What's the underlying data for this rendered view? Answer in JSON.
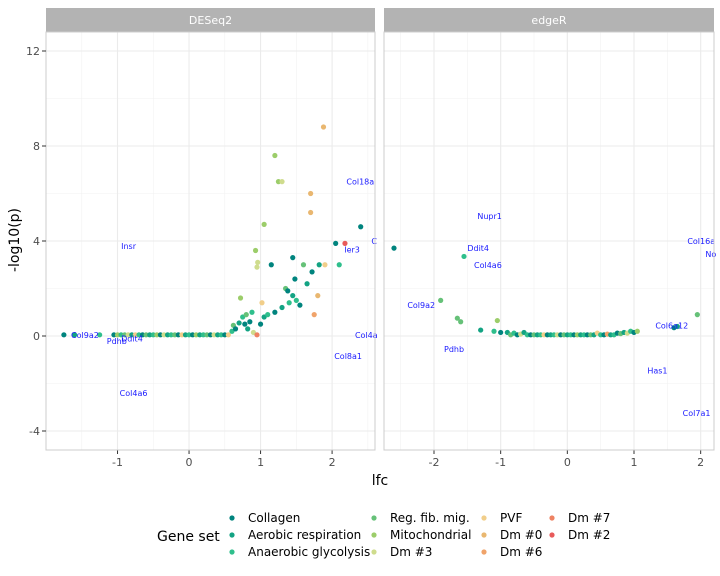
{
  "chart_data": {
    "type": "scatter",
    "xlabel": "lfc",
    "ylabel": "-log10(p)",
    "ylim": [
      -4.8,
      12.8
    ],
    "yticks": [
      -4,
      0,
      4,
      8,
      12
    ],
    "legend": {
      "title": "Gene set",
      "placement": "bottom",
      "entries": [
        {
          "name": "Collagen",
          "color": "#00847e"
        },
        {
          "name": "Aerobic respiration",
          "color": "#13a383"
        },
        {
          "name": "Anaerobic glycolysis",
          "color": "#2fbf8c"
        },
        {
          "name": "Reg. fib. mig.",
          "color": "#66c178"
        },
        {
          "name": "Mitochondrial",
          "color": "#9ccd6a"
        },
        {
          "name": "Dm #3",
          "color": "#cfdc8d"
        },
        {
          "name": "PVF",
          "color": "#f1ce8a"
        },
        {
          "name": "Dm #0",
          "color": "#e9b770"
        },
        {
          "name": "Dm #6",
          "color": "#f0a36a"
        },
        {
          "name": "Dm #7",
          "color": "#ee8262"
        },
        {
          "name": "Dm #2",
          "color": "#e85a5a"
        }
      ]
    },
    "panels": [
      {
        "title": "DESeq2",
        "xlim": [
          -2.0,
          2.6
        ],
        "xticks": [
          -1,
          0,
          1,
          2
        ],
        "points": [
          {
            "x": -1.75,
            "y": 0.05,
            "g": 0
          },
          {
            "x": -1.6,
            "y": 0.05,
            "g": 1
          },
          {
            "x": -1.25,
            "y": 0.05,
            "g": 2
          },
          {
            "x": -1.05,
            "y": 0.05,
            "g": 0
          },
          {
            "x": -1.0,
            "y": 0.05,
            "g": 4
          },
          {
            "x": -0.95,
            "y": 0.05,
            "g": 2
          },
          {
            "x": -0.9,
            "y": 0.05,
            "g": 3
          },
          {
            "x": -0.85,
            "y": 0.05,
            "g": 5
          },
          {
            "x": -0.8,
            "y": 0.05,
            "g": 1
          },
          {
            "x": -0.75,
            "y": 0.05,
            "g": 6
          },
          {
            "x": -0.7,
            "y": 0.05,
            "g": 2
          },
          {
            "x": -0.65,
            "y": 0.05,
            "g": 0
          },
          {
            "x": -0.6,
            "y": 0.05,
            "g": 3
          },
          {
            "x": -0.55,
            "y": 0.05,
            "g": 1
          },
          {
            "x": -0.5,
            "y": 0.05,
            "g": 2
          },
          {
            "x": -0.45,
            "y": 0.05,
            "g": 4
          },
          {
            "x": -0.4,
            "y": 0.05,
            "g": 0
          },
          {
            "x": -0.35,
            "y": 0.05,
            "g": 5
          },
          {
            "x": -0.3,
            "y": 0.05,
            "g": 1
          },
          {
            "x": -0.25,
            "y": 0.05,
            "g": 2
          },
          {
            "x": -0.2,
            "y": 0.05,
            "g": 3
          },
          {
            "x": -0.15,
            "y": 0.05,
            "g": 0
          },
          {
            "x": -0.1,
            "y": 0.05,
            "g": 6
          },
          {
            "x": -0.05,
            "y": 0.05,
            "g": 1
          },
          {
            "x": 0.0,
            "y": 0.05,
            "g": 2
          },
          {
            "x": 0.05,
            "y": 0.05,
            "g": 0
          },
          {
            "x": 0.1,
            "y": 0.05,
            "g": 4
          },
          {
            "x": 0.15,
            "y": 0.05,
            "g": 1
          },
          {
            "x": 0.2,
            "y": 0.05,
            "g": 2
          },
          {
            "x": 0.25,
            "y": 0.05,
            "g": 3
          },
          {
            "x": 0.3,
            "y": 0.05,
            "g": 0
          },
          {
            "x": 0.35,
            "y": 0.05,
            "g": 5
          },
          {
            "x": 0.4,
            "y": 0.05,
            "g": 1
          },
          {
            "x": 0.45,
            "y": 0.05,
            "g": 2
          },
          {
            "x": 0.5,
            "y": 0.05,
            "g": 0
          },
          {
            "x": 0.55,
            "y": 0.05,
            "g": 6
          },
          {
            "x": 0.6,
            "y": 0.2,
            "g": 2
          },
          {
            "x": 0.62,
            "y": 0.45,
            "g": 3
          },
          {
            "x": 0.65,
            "y": 0.3,
            "g": 0
          },
          {
            "x": 0.7,
            "y": 0.55,
            "g": 1
          },
          {
            "x": 0.72,
            "y": 1.6,
            "g": 4
          },
          {
            "x": 0.75,
            "y": 0.8,
            "g": 2
          },
          {
            "x": 0.78,
            "y": 0.5,
            "g": 0
          },
          {
            "x": 0.8,
            "y": 0.9,
            "g": 3
          },
          {
            "x": 0.82,
            "y": 0.3,
            "g": 1
          },
          {
            "x": 0.85,
            "y": 0.6,
            "g": 0
          },
          {
            "x": 0.88,
            "y": 1.0,
            "g": 2
          },
          {
            "x": 0.9,
            "y": 0.15,
            "g": 5
          },
          {
            "x": 0.93,
            "y": 3.6,
            "g": 4
          },
          {
            "x": 0.95,
            "y": 2.9,
            "g": 5
          },
          {
            "x": 0.96,
            "y": 3.1,
            "g": 5
          },
          {
            "x": 0.95,
            "y": 0.05,
            "g": 9
          },
          {
            "x": 1.0,
            "y": 0.5,
            "g": 0
          },
          {
            "x": 1.02,
            "y": 1.4,
            "g": 6
          },
          {
            "x": 1.05,
            "y": 4.7,
            "g": 4
          },
          {
            "x": 1.05,
            "y": 0.8,
            "g": 1
          },
          {
            "x": 1.1,
            "y": 0.9,
            "g": 2
          },
          {
            "x": 1.15,
            "y": 3.0,
            "g": 0
          },
          {
            "x": 1.2,
            "y": 7.6,
            "g": 4
          },
          {
            "x": 1.2,
            "y": 1.0,
            "g": 0
          },
          {
            "x": 1.25,
            "y": 6.5,
            "g": 4
          },
          {
            "x": 1.3,
            "y": 6.5,
            "g": 5
          },
          {
            "x": 1.3,
            "y": 1.2,
            "g": 1
          },
          {
            "x": 1.35,
            "y": 2.0,
            "g": 3
          },
          {
            "x": 1.38,
            "y": 1.9,
            "g": 0
          },
          {
            "x": 1.4,
            "y": 1.4,
            "g": 2
          },
          {
            "x": 1.45,
            "y": 3.3,
            "g": 0
          },
          {
            "x": 1.45,
            "y": 1.7,
            "g": 1
          },
          {
            "x": 1.48,
            "y": 2.4,
            "g": 0
          },
          {
            "x": 1.5,
            "y": 1.5,
            "g": 2
          },
          {
            "x": 1.55,
            "y": 1.3,
            "g": 0
          },
          {
            "x": 1.6,
            "y": 3.0,
            "g": 3
          },
          {
            "x": 1.65,
            "y": 2.2,
            "g": 1
          },
          {
            "x": 1.7,
            "y": 6.0,
            "g": 7
          },
          {
            "x": 1.7,
            "y": 5.2,
            "g": 7
          },
          {
            "x": 1.72,
            "y": 2.7,
            "g": 0
          },
          {
            "x": 1.75,
            "y": 0.9,
            "g": 8
          },
          {
            "x": 1.8,
            "y": 1.7,
            "g": 7
          },
          {
            "x": 1.82,
            "y": 3.0,
            "g": 1
          },
          {
            "x": 1.88,
            "y": 8.8,
            "g": 7
          },
          {
            "x": 1.9,
            "y": 3.0,
            "g": 6
          },
          {
            "x": 2.05,
            "y": 3.9,
            "g": 0
          },
          {
            "x": 2.1,
            "y": 3.0,
            "g": 2
          },
          {
            "x": 2.18,
            "y": 3.9,
            "g": 10
          },
          {
            "x": 2.4,
            "y": 4.6,
            "g": 0
          }
        ],
        "annotations": [
          {
            "text": "Col9a2",
            "x": -1.65,
            "y": 0.05
          },
          {
            "text": "Pdhb",
            "x": -1.15,
            "y": -0.2
          },
          {
            "text": "Ddit4",
            "x": -0.95,
            "y": -0.1
          },
          {
            "text": "Insr",
            "x": -0.95,
            "y": 3.8
          },
          {
            "text": "Col4a6",
            "x": -0.97,
            "y": -2.4
          },
          {
            "text": "Col18a",
            "x": 2.2,
            "y": 6.5
          },
          {
            "text": "Ier3",
            "x": 2.17,
            "y": 3.65
          },
          {
            "text": "C",
            "x": 2.55,
            "y": 4.0
          },
          {
            "text": "Col4a",
            "x": 2.32,
            "y": 0.05
          },
          {
            "text": "Col8a1",
            "x": 2.03,
            "y": -0.85
          }
        ]
      },
      {
        "title": "edgeR",
        "xlim": [
          -2.75,
          2.2
        ],
        "xticks": [
          -2,
          -1,
          0,
          1,
          2
        ],
        "points": [
          {
            "x": -2.6,
            "y": 3.7,
            "g": 0
          },
          {
            "x": -1.9,
            "y": 1.5,
            "g": 3
          },
          {
            "x": -1.65,
            "y": 0.75,
            "g": 3
          },
          {
            "x": -1.6,
            "y": 0.6,
            "g": 3
          },
          {
            "x": -1.55,
            "y": 3.35,
            "g": 2
          },
          {
            "x": -1.3,
            "y": 0.25,
            "g": 1
          },
          {
            "x": -1.1,
            "y": 0.2,
            "g": 2
          },
          {
            "x": -1.05,
            "y": 0.65,
            "g": 4
          },
          {
            "x": -1.0,
            "y": 0.15,
            "g": 0
          },
          {
            "x": -0.9,
            "y": 0.15,
            "g": 1
          },
          {
            "x": -0.85,
            "y": 0.05,
            "g": 3
          },
          {
            "x": -0.8,
            "y": 0.12,
            "g": 2
          },
          {
            "x": -0.75,
            "y": 0.05,
            "g": 0
          },
          {
            "x": -0.7,
            "y": 0.08,
            "g": 5
          },
          {
            "x": -0.65,
            "y": 0.15,
            "g": 1
          },
          {
            "x": -0.6,
            "y": 0.05,
            "g": 2
          },
          {
            "x": -0.55,
            "y": 0.05,
            "g": 0
          },
          {
            "x": -0.5,
            "y": 0.05,
            "g": 3
          },
          {
            "x": -0.45,
            "y": 0.05,
            "g": 1
          },
          {
            "x": -0.4,
            "y": 0.05,
            "g": 2
          },
          {
            "x": -0.35,
            "y": 0.05,
            "g": 6
          },
          {
            "x": -0.3,
            "y": 0.05,
            "g": 0
          },
          {
            "x": -0.25,
            "y": 0.05,
            "g": 1
          },
          {
            "x": -0.2,
            "y": 0.05,
            "g": 2
          },
          {
            "x": -0.15,
            "y": 0.05,
            "g": 5
          },
          {
            "x": -0.1,
            "y": 0.05,
            "g": 0
          },
          {
            "x": -0.05,
            "y": 0.05,
            "g": 3
          },
          {
            "x": 0.0,
            "y": 0.05,
            "g": 1
          },
          {
            "x": 0.05,
            "y": 0.05,
            "g": 2
          },
          {
            "x": 0.1,
            "y": 0.05,
            "g": 0
          },
          {
            "x": 0.15,
            "y": 0.05,
            "g": 4
          },
          {
            "x": 0.2,
            "y": 0.05,
            "g": 1
          },
          {
            "x": 0.25,
            "y": 0.05,
            "g": 2
          },
          {
            "x": 0.3,
            "y": 0.05,
            "g": 0
          },
          {
            "x": 0.35,
            "y": 0.05,
            "g": 3
          },
          {
            "x": 0.4,
            "y": 0.05,
            "g": 1
          },
          {
            "x": 0.45,
            "y": 0.12,
            "g": 6
          },
          {
            "x": 0.5,
            "y": 0.05,
            "g": 2
          },
          {
            "x": 0.55,
            "y": 0.05,
            "g": 0
          },
          {
            "x": 0.6,
            "y": 0.08,
            "g": 8
          },
          {
            "x": 0.65,
            "y": 0.05,
            "g": 1
          },
          {
            "x": 0.7,
            "y": 0.05,
            "g": 2
          },
          {
            "x": 0.75,
            "y": 0.12,
            "g": 0
          },
          {
            "x": 0.8,
            "y": 0.1,
            "g": 3
          },
          {
            "x": 0.85,
            "y": 0.15,
            "g": 1
          },
          {
            "x": 0.9,
            "y": 0.12,
            "g": 5
          },
          {
            "x": 0.95,
            "y": 0.2,
            "g": 2
          },
          {
            "x": 1.0,
            "y": 0.15,
            "g": 0
          },
          {
            "x": 1.05,
            "y": 0.2,
            "g": 4
          },
          {
            "x": 1.6,
            "y": 0.35,
            "g": 0
          },
          {
            "x": 1.65,
            "y": 0.4,
            "g": 1
          },
          {
            "x": 1.95,
            "y": 0.9,
            "g": 3
          }
        ],
        "annotations": [
          {
            "text": "Nupr1",
            "x": -1.35,
            "y": 5.05
          },
          {
            "text": "Ddit4",
            "x": -1.5,
            "y": 3.7
          },
          {
            "text": "Col4a6",
            "x": -1.4,
            "y": 3.0
          },
          {
            "text": "Col9a2",
            "x": -2.4,
            "y": 1.3
          },
          {
            "text": "Pdhb",
            "x": -1.85,
            "y": -0.55
          },
          {
            "text": "Col6a12",
            "x": 1.32,
            "y": 0.45
          },
          {
            "text": "Has1",
            "x": 1.2,
            "y": -1.45
          },
          {
            "text": "Col16a",
            "x": 1.8,
            "y": 4.0
          },
          {
            "text": "No",
            "x": 2.07,
            "y": 3.45
          },
          {
            "text": "Col7a1",
            "x": 1.73,
            "y": -3.25
          }
        ]
      }
    ]
  }
}
